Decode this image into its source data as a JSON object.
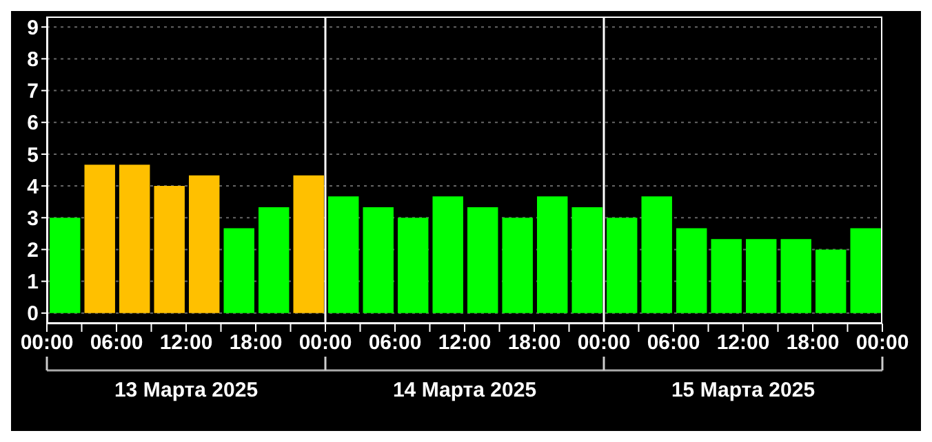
{
  "chart_data": {
    "type": "bar",
    "x": [
      "2025-03-13T01:30",
      "2025-03-13T04:30",
      "2025-03-13T07:30",
      "2025-03-13T10:30",
      "2025-03-13T13:30",
      "2025-03-13T16:30",
      "2025-03-13T19:30",
      "2025-03-13T22:30",
      "2025-03-14T01:30",
      "2025-03-14T04:30",
      "2025-03-14T07:30",
      "2025-03-14T10:30",
      "2025-03-14T13:30",
      "2025-03-14T16:30",
      "2025-03-14T19:30",
      "2025-03-14T22:30",
      "2025-03-15T01:30",
      "2025-03-15T04:30",
      "2025-03-15T07:30",
      "2025-03-15T10:30",
      "2025-03-15T13:30",
      "2025-03-15T16:30",
      "2025-03-15T19:30",
      "2025-03-15T22:30"
    ],
    "values": [
      3.0,
      4.67,
      4.67,
      4.0,
      4.33,
      2.67,
      3.33,
      4.33,
      3.67,
      3.33,
      3.0,
      3.67,
      3.33,
      3.0,
      3.67,
      3.33,
      3.0,
      3.67,
      2.67,
      2.33,
      2.33,
      2.33,
      2.0,
      2.67
    ],
    "colors": [
      "#00ff00",
      "#ffc000",
      "#ffc000",
      "#ffc000",
      "#ffc000",
      "#00ff00",
      "#00ff00",
      "#ffc000",
      "#00ff00",
      "#00ff00",
      "#00ff00",
      "#00ff00",
      "#00ff00",
      "#00ff00",
      "#00ff00",
      "#00ff00",
      "#00ff00",
      "#00ff00",
      "#00ff00",
      "#00ff00",
      "#00ff00",
      "#00ff00",
      "#00ff00",
      "#00ff00"
    ],
    "xlim": [
      "2025-03-13T00:00",
      "2025-03-16T00:00"
    ],
    "xticks": [
      {
        "value": "2025-03-13T00:00",
        "label": "00:00"
      },
      {
        "value": "2025-03-13T03:00",
        "label": null
      },
      {
        "value": "2025-03-13T06:00",
        "label": "06:00"
      },
      {
        "value": "2025-03-13T09:00",
        "label": null
      },
      {
        "value": "2025-03-13T12:00",
        "label": "12:00"
      },
      {
        "value": "2025-03-13T15:00",
        "label": null
      },
      {
        "value": "2025-03-13T18:00",
        "label": "18:00"
      },
      {
        "value": "2025-03-13T21:00",
        "label": null
      },
      {
        "value": "2025-03-14T00:00",
        "label": "00:00"
      },
      {
        "value": "2025-03-14T03:00",
        "label": null
      },
      {
        "value": "2025-03-14T06:00",
        "label": "06:00"
      },
      {
        "value": "2025-03-14T09:00",
        "label": null
      },
      {
        "value": "2025-03-14T12:00",
        "label": "12:00"
      },
      {
        "value": "2025-03-14T15:00",
        "label": null
      },
      {
        "value": "2025-03-14T18:00",
        "label": "18:00"
      },
      {
        "value": "2025-03-14T21:00",
        "label": null
      },
      {
        "value": "2025-03-15T00:00",
        "label": "00:00"
      },
      {
        "value": "2025-03-15T03:00",
        "label": null
      },
      {
        "value": "2025-03-15T06:00",
        "label": "06:00"
      },
      {
        "value": "2025-03-15T09:00",
        "label": null
      },
      {
        "value": "2025-03-15T12:00",
        "label": "12:00"
      },
      {
        "value": "2025-03-15T15:00",
        "label": null
      },
      {
        "value": "2025-03-15T18:00",
        "label": "18:00"
      },
      {
        "value": "2025-03-15T21:00",
        "label": null
      },
      {
        "value": "2025-03-16T00:00",
        "label": "00:00"
      }
    ],
    "ylim": [
      -0.33,
      9.33
    ],
    "yticks": [
      0,
      1,
      2,
      3,
      4,
      5,
      6,
      7,
      8,
      9
    ],
    "grid": "y",
    "ref_lines": [
      {
        "axis": "x",
        "value": "2025-03-14T00:00",
        "color": "#ffffff"
      },
      {
        "axis": "x",
        "value": "2025-03-15T00:00",
        "color": "#ffffff"
      }
    ],
    "annotations": [
      "13 Марта 2025",
      "14 Марта 2025",
      "15 Марта 2025"
    ]
  }
}
